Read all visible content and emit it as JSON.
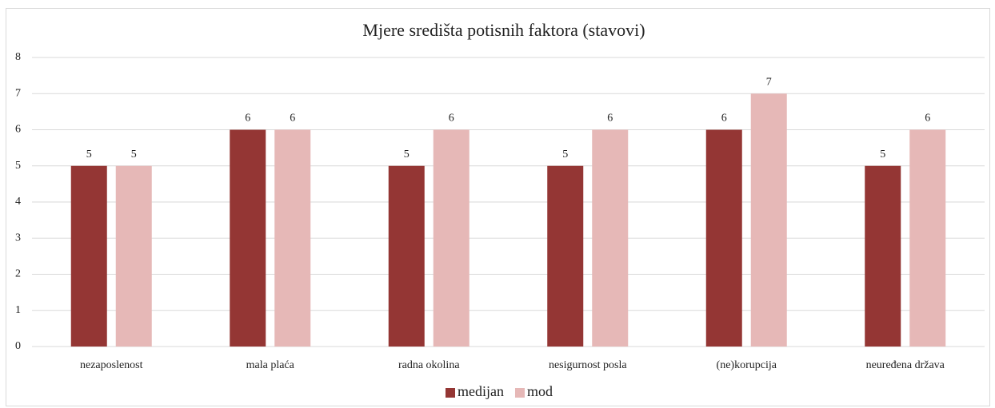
{
  "chart_data": {
    "type": "bar",
    "title": "Mjere središta potisnih faktora (stavovi)",
    "categories": [
      "nezaposlenost",
      "mala plaća",
      "radna okolina",
      "nesigurnost posla",
      "(ne)korupcija",
      "neuređena država"
    ],
    "series": [
      {
        "name": "medijan",
        "color": "#943634",
        "values": [
          5,
          6,
          5,
          5,
          6,
          5
        ]
      },
      {
        "name": "mod",
        "color": "#e6b8b7",
        "values": [
          5,
          6,
          6,
          6,
          7,
          6
        ]
      }
    ],
    "ylim": [
      0,
      8
    ],
    "yticks": [
      0,
      1,
      2,
      3,
      4,
      5,
      6,
      7,
      8
    ],
    "grid": true,
    "legend": "bottom"
  }
}
